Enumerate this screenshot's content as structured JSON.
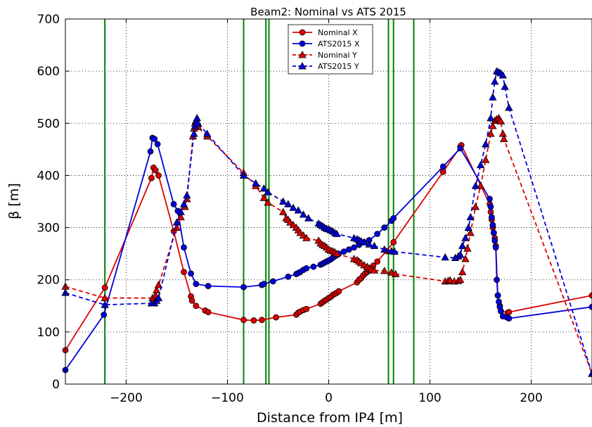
{
  "chart_data": {
    "type": "line",
    "title": "Beam2: Nominal vs ATS 2015",
    "xlabel": "Distance from IP4 [m]",
    "ylabel": "β [m]",
    "xlim": [
      -260,
      260
    ],
    "ylim": [
      0,
      700
    ],
    "xticks": [
      -200,
      -100,
      0,
      100,
      200
    ],
    "yticks": [
      0,
      100,
      200,
      300,
      400,
      500,
      600,
      700
    ],
    "grid": true,
    "legend_position": "top-center",
    "vertical_lines": [
      -221,
      -84,
      -62,
      -59,
      59,
      64,
      84
    ],
    "vertical_line_color": "#008000",
    "series": [
      {
        "name": "Nominal X",
        "color": "#dd0000",
        "linestyle": "solid",
        "marker": "circle",
        "x": [
          -260,
          -221,
          -175,
          -173,
          -171,
          -168,
          -153,
          -143,
          -136,
          -135,
          -131,
          -122,
          -119,
          -84,
          -74,
          -66,
          -52,
          -32,
          -30,
          -28,
          -25,
          -22,
          -8,
          -6,
          -4,
          -2,
          0,
          2,
          4,
          6,
          8,
          10,
          28,
          30,
          32,
          34,
          36,
          38,
          40,
          42,
          44,
          48,
          57,
          64,
          113,
          130,
          131,
          159,
          160,
          161,
          162,
          163,
          164,
          165,
          167,
          169,
          170,
          177,
          178,
          260
        ],
        "y": [
          65,
          185,
          395,
          415,
          410,
          400,
          293,
          215,
          168,
          160,
          150,
          141,
          138,
          123,
          122,
          123,
          128,
          133,
          137,
          139,
          142,
          144,
          154,
          157,
          160,
          162,
          165,
          167,
          171,
          173,
          175,
          178,
          195,
          200,
          203,
          208,
          212,
          215,
          218,
          222,
          227,
          235,
          255,
          272,
          407,
          455,
          458,
          345,
          330,
          315,
          300,
          290,
          280,
          265,
          170,
          150,
          140,
          137,
          138,
          170
        ]
      },
      {
        "name": "ATS2015 X",
        "color": "#0000dd",
        "linestyle": "solid",
        "marker": "circle",
        "x": [
          -260,
          -222,
          -176,
          -174,
          -172,
          -169,
          -153,
          -149,
          -143,
          -136,
          -131,
          -119,
          -84,
          -66,
          -64,
          -55,
          -40,
          -32,
          -30,
          -28,
          -25,
          -22,
          -15,
          -8,
          -6,
          -4,
          -2,
          0,
          2,
          4,
          6,
          8,
          10,
          15,
          20,
          25,
          30,
          35,
          40,
          48,
          55,
          62,
          64,
          113,
          130,
          159,
          160,
          161,
          162,
          163,
          164,
          165,
          166,
          167,
          168,
          169,
          170,
          172,
          176,
          178,
          260
        ],
        "y": [
          27,
          133,
          446,
          472,
          470,
          460,
          345,
          332,
          262,
          212,
          192,
          188,
          186,
          190,
          192,
          197,
          206,
          211,
          213,
          215,
          219,
          222,
          225,
          229,
          231,
          233,
          235,
          237,
          239,
          242,
          245,
          247,
          250,
          254,
          258,
          262,
          267,
          272,
          276,
          288,
          300,
          313,
          318,
          417,
          452,
          355,
          340,
          320,
          305,
          290,
          275,
          262,
          200,
          170,
          158,
          148,
          140,
          130,
          128,
          126,
          148
        ]
      },
      {
        "name": "Nominal Y",
        "color": "#dd0000",
        "linestyle": "dashed",
        "marker": "triangle",
        "x": [
          -260,
          -221,
          -174,
          -171,
          -170,
          -168,
          -150,
          -146,
          -142,
          -140,
          -134,
          -133,
          -132,
          -131,
          -129,
          -120,
          -84,
          -72,
          -64,
          -60,
          -45,
          -42,
          -40,
          -38,
          -35,
          -32,
          -30,
          -28,
          -25,
          -22,
          -10,
          -8,
          -6,
          -4,
          -2,
          0,
          2,
          4,
          6,
          8,
          25,
          28,
          30,
          32,
          35,
          38,
          40,
          42,
          45,
          55,
          62,
          66,
          115,
          118,
          120,
          124,
          128,
          130,
          132,
          135,
          137,
          140,
          145,
          150,
          155,
          160,
          162,
          164,
          166,
          168,
          169,
          170,
          172,
          173,
          260
        ],
        "y": [
          187,
          165,
          165,
          170,
          180,
          190,
          300,
          320,
          340,
          355,
          475,
          490,
          500,
          505,
          493,
          475,
          405,
          380,
          357,
          348,
          330,
          318,
          315,
          310,
          305,
          300,
          295,
          290,
          285,
          280,
          275,
          270,
          267,
          265,
          262,
          258,
          256,
          255,
          253,
          250,
          240,
          238,
          235,
          232,
          228,
          225,
          222,
          220,
          218,
          217,
          214,
          211,
          197,
          198,
          199,
          197,
          198,
          200,
          215,
          240,
          260,
          290,
          340,
          380,
          430,
          480,
          495,
          505,
          508,
          510,
          506,
          504,
          480,
          470,
          20
        ]
      },
      {
        "name": "ATS2015 Y",
        "color": "#0000dd",
        "linestyle": "dashed",
        "marker": "triangle",
        "x": [
          -260,
          -221,
          -175,
          -172,
          -170,
          -168,
          -150,
          -146,
          -143,
          -140,
          -133,
          -132,
          -131,
          -130,
          -129,
          -120,
          -84,
          -72,
          -64,
          -60,
          -45,
          -40,
          -35,
          -30,
          -25,
          -20,
          -10,
          -8,
          -6,
          -4,
          -2,
          0,
          2,
          4,
          6,
          8,
          25,
          28,
          30,
          32,
          35,
          40,
          45,
          55,
          62,
          65,
          115,
          125,
          128,
          130,
          132,
          135,
          138,
          140,
          145,
          150,
          155,
          160,
          162,
          164,
          166,
          168,
          170,
          172,
          174,
          178,
          260
        ],
        "y": [
          175,
          152,
          155,
          155,
          160,
          165,
          310,
          330,
          345,
          362,
          480,
          495,
          505,
          510,
          500,
          480,
          400,
          385,
          375,
          368,
          350,
          345,
          338,
          333,
          325,
          318,
          308,
          305,
          303,
          300,
          298,
          297,
          295,
          293,
          290,
          288,
          280,
          278,
          276,
          274,
          272,
          268,
          265,
          258,
          255,
          254,
          243,
          242,
          245,
          248,
          265,
          280,
          300,
          320,
          380,
          420,
          460,
          510,
          550,
          580,
          600,
          598,
          596,
          592,
          570,
          530,
          20
        ]
      }
    ]
  }
}
